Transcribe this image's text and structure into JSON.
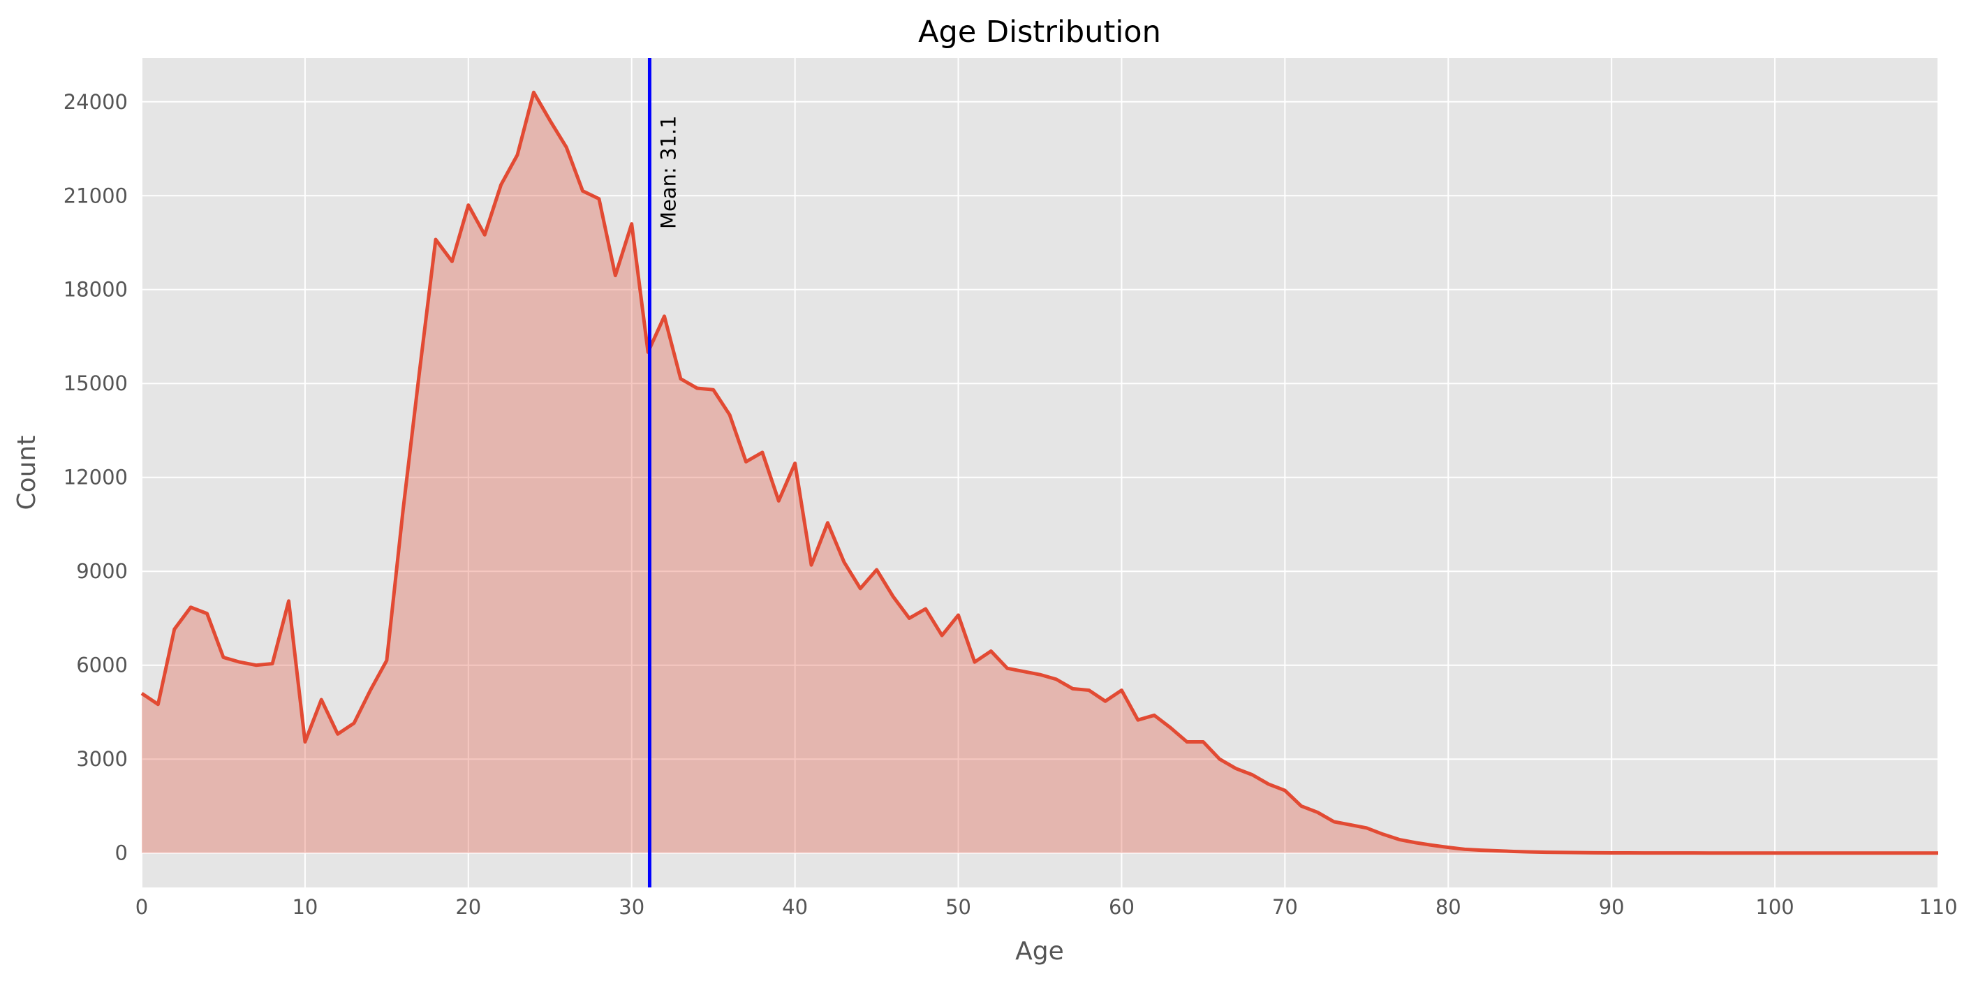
{
  "chart_data": {
    "type": "area",
    "title": "Age Distribution",
    "xlabel": "Age",
    "ylabel": "Count",
    "xlim": [
      0,
      110
    ],
    "ylim": [
      -1100,
      25400
    ],
    "xticks": [
      0,
      10,
      20,
      30,
      40,
      50,
      60,
      70,
      80,
      90,
      100,
      110
    ],
    "yticks": [
      0,
      3000,
      6000,
      9000,
      12000,
      15000,
      18000,
      21000,
      24000
    ],
    "grid": true,
    "series": [
      {
        "x": [
          0,
          1,
          2,
          3,
          4,
          5,
          6,
          7,
          8,
          9,
          10,
          11,
          12,
          13,
          14,
          15,
          16,
          17,
          18,
          19,
          20,
          21,
          22,
          23,
          24,
          25,
          26,
          27,
          28,
          29,
          30,
          31,
          32,
          33,
          34,
          35,
          36,
          37,
          38,
          39,
          40,
          41,
          42,
          43,
          44,
          45,
          46,
          47,
          48,
          49,
          50,
          51,
          52,
          53,
          54,
          55,
          56,
          57,
          58,
          59,
          60,
          61,
          62,
          63,
          64,
          65,
          66,
          67,
          68,
          69,
          70,
          71,
          72,
          73,
          74,
          75,
          76,
          77,
          78,
          79,
          80,
          81,
          82,
          83,
          84,
          85,
          86,
          87,
          88,
          89,
          90,
          91,
          92,
          93,
          94,
          95,
          96,
          97,
          98,
          99,
          100,
          101,
          102,
          103,
          104,
          105,
          106,
          107,
          108,
          109,
          110
        ],
        "values": [
          5100,
          4750,
          7150,
          7850,
          7650,
          6250,
          6100,
          6000,
          6050,
          8050,
          3550,
          4900,
          3800,
          4150,
          5200,
          6150,
          10950,
          15350,
          19600,
          18900,
          20700,
          19750,
          21350,
          22300,
          24300,
          23400,
          22550,
          21150,
          20900,
          18450,
          20100,
          16000,
          17150,
          15150,
          14850,
          14800,
          14000,
          12500,
          12800,
          11250,
          12450,
          9200,
          10550,
          9300,
          8450,
          9050,
          8200,
          7500,
          7800,
          6950,
          7600,
          6100,
          6450,
          5900,
          5800,
          5700,
          5550,
          5250,
          5200,
          4850,
          5200,
          4250,
          4400,
          4000,
          3550,
          3550,
          3000,
          2700,
          2500,
          2200,
          2000,
          1500,
          1300,
          1000,
          900,
          800,
          600,
          430,
          330,
          250,
          180,
          120,
          90,
          70,
          50,
          35,
          25,
          18,
          12,
          8,
          5,
          3,
          2,
          1,
          1,
          1,
          0,
          0,
          0,
          0,
          0,
          0,
          0,
          0,
          0,
          0,
          0,
          0,
          0,
          0,
          0
        ]
      }
    ],
    "annotation": {
      "x": 31.1,
      "label": "Mean: 31.1"
    },
    "colors": {
      "line": "#e24a33",
      "fill": "#e24a33",
      "mean_line": "#0000ff",
      "plot_bg": "#e5e5e5",
      "grid": "#ffffff"
    }
  }
}
